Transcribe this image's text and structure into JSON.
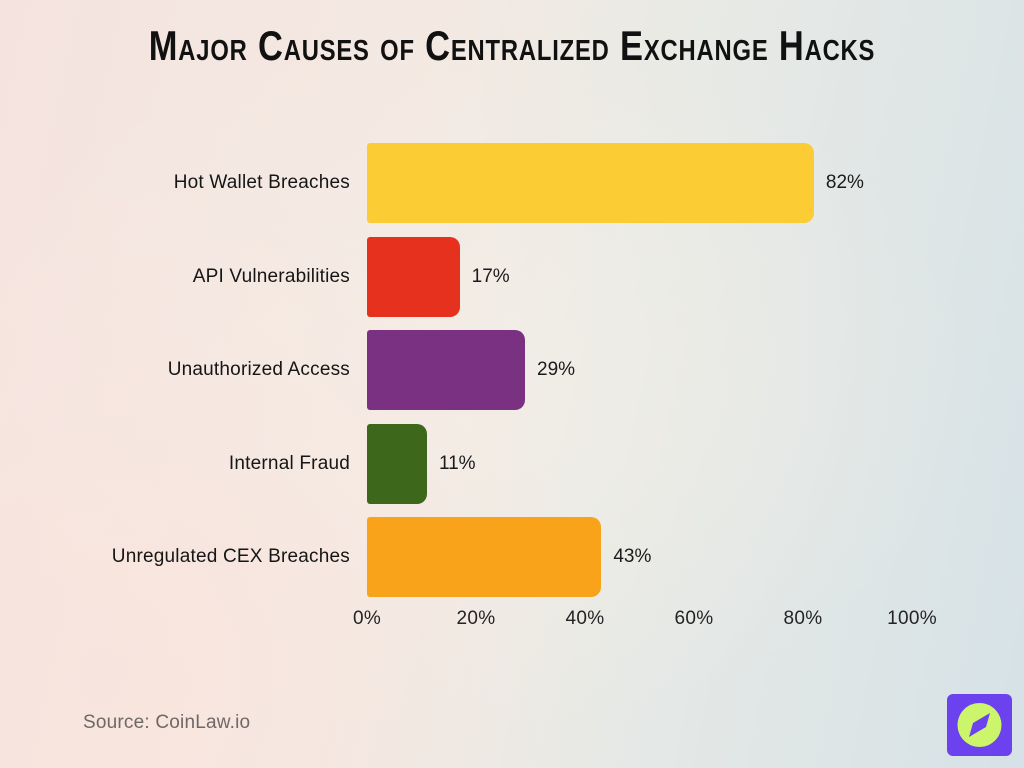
{
  "chart_data": {
    "type": "bar",
    "orientation": "horizontal",
    "title": "Major Causes of Centralized Exchange Hacks",
    "categories": [
      "Hot Wallet Breaches",
      "API Vulnerabilities",
      "Unauthorized Access",
      "Internal Fraud",
      "Unregulated CEX Breaches"
    ],
    "values": [
      82,
      17,
      29,
      11,
      43
    ],
    "value_labels": [
      "82%",
      "17%",
      "29%",
      "11%",
      "43%"
    ],
    "bar_colors": [
      "#FBCC34",
      "#E6311F",
      "#7B3182",
      "#3D671B",
      "#F9A31A"
    ],
    "xlabel": "",
    "ylabel": "",
    "xlim": [
      0,
      100
    ],
    "x_ticks": [
      "0%",
      "20%",
      "40%",
      "60%",
      "80%",
      "100%"
    ],
    "x_tick_values": [
      0,
      20,
      40,
      60,
      80,
      100
    ],
    "grid": false,
    "legend": false
  },
  "footer": {
    "source": "Source: CoinLaw.io"
  },
  "logo": {
    "icon": "compass-icon",
    "bg_color": "#6C42EE",
    "circle_color": "#CDF56C"
  }
}
